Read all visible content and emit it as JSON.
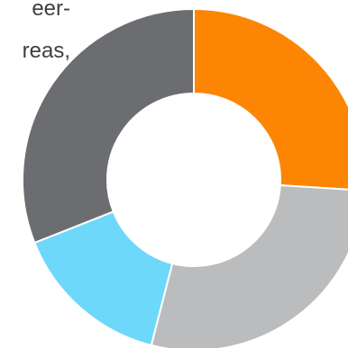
{
  "background_text": {
    "line1": "eer-",
    "line2": "reas,"
  },
  "chart_data": {
    "type": "pie",
    "variant": "donut",
    "title": "",
    "start_angle_degrees": 0,
    "direction": "clockwise",
    "slices": [
      {
        "value": 26,
        "color": "#fc8504"
      },
      {
        "value": 28,
        "color": "#bbbcbd"
      },
      {
        "value": 15,
        "color": "#6ed8fb"
      },
      {
        "value": 31,
        "color": "#6c6d70"
      }
    ],
    "slice_border_color": "#ffffff"
  }
}
